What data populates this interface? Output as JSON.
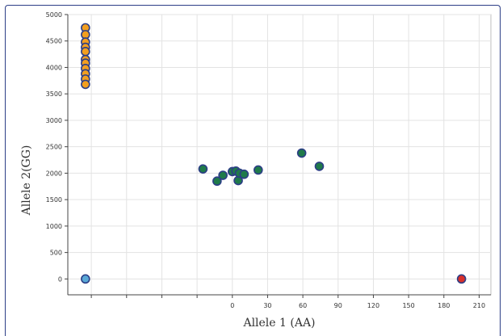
{
  "chart_data": {
    "type": "scatter",
    "xlabel": "Allele 1 (AA)",
    "ylabel": "Allele 2(GG)",
    "grid": true,
    "x_ticks": [
      "0",
      "30",
      "60",
      "90",
      "120",
      "150",
      "180",
      "210"
    ],
    "x_ticks_extra": [
      "",
      "",
      "",
      ""
    ],
    "y_ticks": [
      "0",
      "500",
      "1000",
      "1500",
      "2000",
      "2500",
      "3000",
      "3500",
      "4000",
      "4500",
      "5000"
    ],
    "xlim": [
      -140,
      220
    ],
    "ylim": [
      -300,
      5000
    ],
    "colors": {
      "orange": "#f29f1f",
      "green": "#1f7a4a",
      "lightblue": "#5aa9d6",
      "red": "#d9302b",
      "outline": "#2c3e86"
    },
    "series": [
      {
        "color": "orange",
        "points": [
          [
            -125,
            4750
          ],
          [
            -125,
            4620
          ],
          [
            -125,
            4480
          ],
          [
            -125,
            4380
          ],
          [
            -125,
            4300
          ],
          [
            -125,
            4150
          ],
          [
            -125,
            4080
          ],
          [
            -125,
            3980
          ],
          [
            -125,
            3880
          ],
          [
            -125,
            3780
          ],
          [
            -125,
            3680
          ]
        ]
      },
      {
        "color": "green",
        "points": [
          [
            -25,
            2080
          ],
          [
            -13,
            1850
          ],
          [
            -8,
            1960
          ],
          [
            0,
            2030
          ],
          [
            3,
            2040
          ],
          [
            5,
            1860
          ],
          [
            6,
            2000
          ],
          [
            10,
            1980
          ],
          [
            22,
            2060
          ],
          [
            59,
            2380
          ],
          [
            74,
            2130
          ]
        ]
      },
      {
        "color": "lightblue",
        "points": [
          [
            -125,
            0
          ]
        ]
      },
      {
        "color": "red",
        "points": [
          [
            195,
            0
          ]
        ]
      }
    ]
  }
}
